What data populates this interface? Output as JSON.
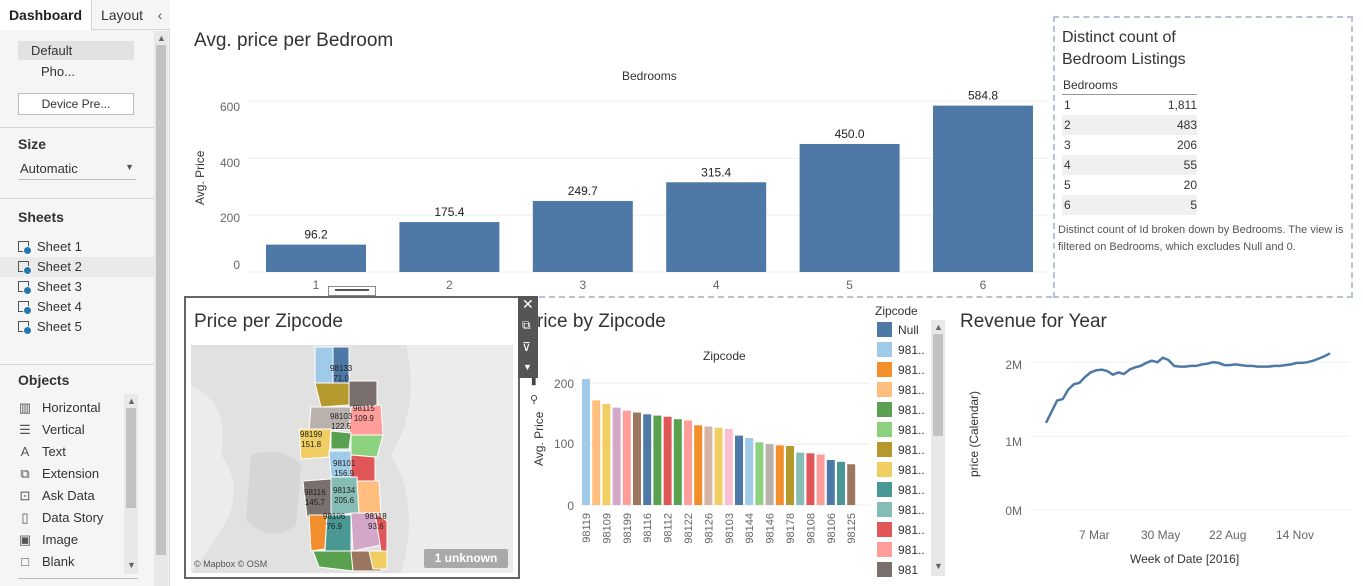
{
  "sidebar": {
    "tabs": [
      "Dashboard",
      "Layout"
    ],
    "collapse_icon": "chevron-left-icon",
    "devices": {
      "default": "Default",
      "phone": "Pho...",
      "preview_button": "Device Pre..."
    },
    "size": {
      "heading": "Size",
      "value": "Automatic"
    },
    "sheets": {
      "heading": "Sheets",
      "items": [
        "Sheet 1",
        "Sheet 2",
        "Sheet 3",
        "Sheet 4",
        "Sheet 5"
      ]
    },
    "objects": {
      "heading": "Objects",
      "items": [
        {
          "label": "Horizontal",
          "icon": "horizontal-container-icon"
        },
        {
          "label": "Vertical",
          "icon": "vertical-container-icon"
        },
        {
          "label": "Text",
          "icon": "text-icon"
        },
        {
          "label": "Extension",
          "icon": "extension-icon"
        },
        {
          "label": "Ask Data",
          "icon": "ask-data-icon"
        },
        {
          "label": "Data Story",
          "icon": "data-story-icon"
        },
        {
          "label": "Image",
          "icon": "image-icon"
        },
        {
          "label": "Blank",
          "icon": "blank-icon"
        }
      ]
    }
  },
  "colors": {
    "bar": "#4e79a7",
    "accent": "#4e79a7",
    "dashed": "#b6c3d6"
  },
  "bedroom_chart": {
    "title": "Avg. price per Bedroom",
    "xlabel_top": "Bedrooms",
    "ylabel": "Avg. Price",
    "yticks": [
      "600",
      "400",
      "200",
      "0"
    ]
  },
  "distinct_table": {
    "title_line1": "Distinct count of",
    "title_line2": "Bedroom Listings",
    "header": "Bedrooms",
    "rows": [
      {
        "k": "1",
        "v": "1,811"
      },
      {
        "k": "2",
        "v": "483"
      },
      {
        "k": "3",
        "v": "206"
      },
      {
        "k": "4",
        "v": "55"
      },
      {
        "k": "5",
        "v": "20"
      },
      {
        "k": "6",
        "v": "5"
      }
    ],
    "caption": "Distinct count of Id broken down by Bedrooms. The view is filtered on Bedrooms, which excludes Null and 0."
  },
  "map_panel": {
    "title": "Price per Zipcode",
    "attribution": "© Mapbox © OSM",
    "unknown_badge": "1 unknown",
    "labels": [
      {
        "zip": "98133",
        "val": "71.0"
      },
      {
        "zip": "98115",
        "val": "109.9"
      },
      {
        "zip": "98103",
        "val": "122.5"
      },
      {
        "zip": "98199",
        "val": "151.8"
      },
      {
        "zip": "98101",
        "val": "156.9"
      },
      {
        "zip": "98116",
        "val": "145.7"
      },
      {
        "zip": "98134",
        "val": "205.6"
      },
      {
        "zip": "98106",
        "val": "76.9"
      },
      {
        "zip": "98118",
        "val": "93.6"
      }
    ]
  },
  "zip_chart": {
    "title_visible": "rice by Zipcode",
    "xlabel_top": "Zipcode",
    "ylabel": "Avg. Price",
    "yticks": [
      "200",
      "100",
      "0"
    ],
    "visible_tick_labels": [
      "98119",
      "98109",
      "98199",
      "98116",
      "98112",
      "98122",
      "98126",
      "98103",
      "98144",
      "98146",
      "98178",
      "98108",
      "98106",
      "98125"
    ]
  },
  "legend": {
    "title": "Zipcode",
    "items": [
      {
        "label": "Null",
        "color": "#4e79a7"
      },
      {
        "label": "981..",
        "color": "#a0cbe8"
      },
      {
        "label": "981..",
        "color": "#f28e2b"
      },
      {
        "label": "981..",
        "color": "#ffbe7d"
      },
      {
        "label": "981..",
        "color": "#59a14f"
      },
      {
        "label": "981..",
        "color": "#8cd17d"
      },
      {
        "label": "981..",
        "color": "#b6992d"
      },
      {
        "label": "981..",
        "color": "#f1ce63"
      },
      {
        "label": "981..",
        "color": "#499894"
      },
      {
        "label": "981..",
        "color": "#86bcb6"
      },
      {
        "label": "981..",
        "color": "#e15759"
      },
      {
        "label": "981..",
        "color": "#ff9d9a"
      },
      {
        "label": "981",
        "color": "#79706e"
      }
    ]
  },
  "revenue_chart": {
    "title": "Revenue for Year",
    "ylabel": "price (Calendar)",
    "xlabel": "Week of Date [2016]",
    "yticks": [
      "2M",
      "1M",
      "0M"
    ],
    "xticks": [
      "7 Mar",
      "30 May",
      "22 Aug",
      "14 Nov"
    ]
  },
  "chart_data": [
    {
      "type": "bar",
      "title": "Avg. price per Bedroom",
      "xlabel": "Bedrooms",
      "ylabel": "Avg. Price",
      "categories": [
        "1",
        "2",
        "3",
        "4",
        "5",
        "6"
      ],
      "values": [
        96.2,
        175.4,
        249.7,
        315.4,
        450.0,
        584.8
      ],
      "value_labels": [
        "96.2",
        "175.4",
        "249.7",
        "315.4",
        "450.0",
        "584.8"
      ],
      "ylim": [
        0,
        620
      ],
      "grid": true
    },
    {
      "type": "bar",
      "title": "rice by Zipcode",
      "xlabel": "Zipcode",
      "ylabel": "Avg. Price",
      "ylim": [
        0,
        220
      ],
      "grid": true,
      "bars": [
        {
          "value": 207,
          "color": "#a0cbe8"
        },
        {
          "value": 172,
          "color": "#ffbe7d"
        },
        {
          "value": 166,
          "color": "#f1ce63"
        },
        {
          "value": 160,
          "color": "#d4a6c8"
        },
        {
          "value": 155,
          "color": "#ff9d9a"
        },
        {
          "value": 152,
          "color": "#9d7660"
        },
        {
          "value": 149,
          "color": "#4e79a7"
        },
        {
          "value": 147,
          "color": "#59a14f"
        },
        {
          "value": 145,
          "color": "#e15759"
        },
        {
          "value": 141,
          "color": "#59a14f"
        },
        {
          "value": 139,
          "color": "#ff9d9a"
        },
        {
          "value": 131,
          "color": "#f28e2b"
        },
        {
          "value": 129,
          "color": "#d7b5a6"
        },
        {
          "value": 127,
          "color": "#f1ce63"
        },
        {
          "value": 125,
          "color": "#fabfd2"
        },
        {
          "value": 114,
          "color": "#4e79a7"
        },
        {
          "value": 110,
          "color": "#a0cbe8"
        },
        {
          "value": 103,
          "color": "#8cd17d"
        },
        {
          "value": 100,
          "color": "#bab0ac"
        },
        {
          "value": 98,
          "color": "#f28e2b"
        },
        {
          "value": 97,
          "color": "#b6992d"
        },
        {
          "value": 86,
          "color": "#86bcb6"
        },
        {
          "value": 85,
          "color": "#e15759"
        },
        {
          "value": 83,
          "color": "#ff9d9a"
        },
        {
          "value": 74,
          "color": "#4e79a7"
        },
        {
          "value": 71,
          "color": "#499894"
        },
        {
          "value": 67,
          "color": "#9d7660"
        }
      ]
    },
    {
      "type": "line",
      "title": "Revenue for Year",
      "xlabel": "Week of Date [2016]",
      "ylabel": "price (Calendar)",
      "ylim": [
        0,
        2300000
      ],
      "x_ticks": [
        "7 Mar",
        "30 May",
        "22 Aug",
        "14 Nov"
      ],
      "x_week": [
        1,
        2,
        3,
        4,
        5,
        6,
        7,
        8,
        9,
        10,
        11,
        12,
        13,
        14,
        15,
        16,
        17,
        18,
        19,
        20,
        21,
        22,
        23,
        24,
        25,
        26,
        27,
        28,
        29,
        30,
        31,
        32,
        33,
        34,
        35,
        36,
        37,
        38,
        39,
        40,
        41,
        42,
        43,
        44,
        45,
        46,
        47,
        48,
        49,
        50,
        51,
        52
      ],
      "values": [
        1180000,
        1330000,
        1480000,
        1500000,
        1630000,
        1700000,
        1720000,
        1800000,
        1860000,
        1890000,
        1900000,
        1880000,
        1830000,
        1860000,
        1840000,
        1900000,
        1930000,
        1950000,
        1990000,
        2020000,
        2000000,
        2060000,
        2030000,
        1950000,
        1940000,
        1940000,
        1950000,
        1950000,
        1970000,
        1980000,
        2000000,
        1990000,
        1960000,
        1960000,
        1970000,
        1960000,
        1950000,
        1950000,
        1940000,
        1940000,
        1940000,
        1950000,
        1950000,
        1960000,
        1970000,
        1990000,
        1990000,
        2000000,
        2020000,
        2050000,
        2080000,
        2120000
      ]
    }
  ]
}
